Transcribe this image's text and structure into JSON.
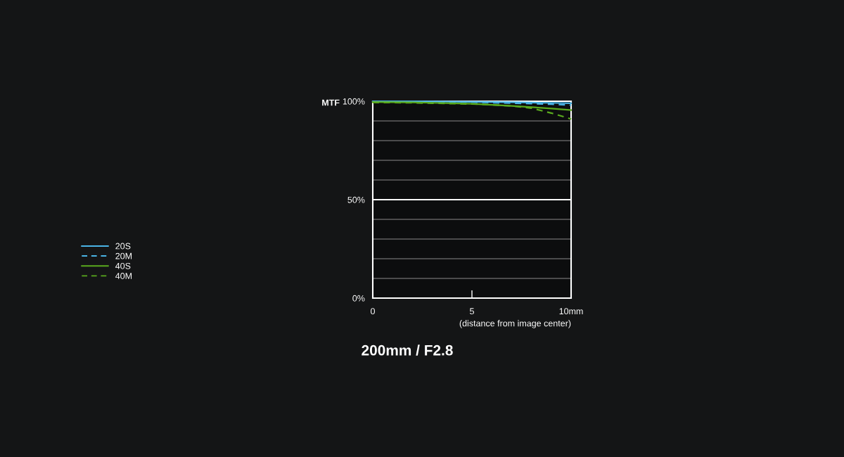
{
  "chart_data": {
    "type": "line",
    "title": "200mm / F2.8",
    "xlabel": "(distance from image center)",
    "ylabel": "MTF",
    "x": [
      0,
      1,
      2,
      3,
      4,
      5,
      6,
      7,
      8,
      9,
      10
    ],
    "series": [
      {
        "name": "20S",
        "color": "#4ab4e6",
        "line_style": "solid",
        "values": [
          100,
          100,
          100,
          99.9,
          99.8,
          99.7,
          99.6,
          99.5,
          99.3,
          99.2,
          99.0
        ]
      },
      {
        "name": "20M",
        "color": "#4ab4e6",
        "line_style": "dashed",
        "values": [
          99.8,
          99.8,
          99.8,
          99.7,
          99.6,
          99.5,
          99.3,
          99.0,
          98.8,
          98.5,
          98.0
        ]
      },
      {
        "name": "40S",
        "color": "#5aaa1e",
        "line_style": "solid",
        "values": [
          99.6,
          99.5,
          99.4,
          99.2,
          99.0,
          98.7,
          98.2,
          97.6,
          97.0,
          96.3,
          95.5
        ]
      },
      {
        "name": "40M",
        "color": "#5aaa1e",
        "line_style": "dashed",
        "values": [
          99.4,
          99.3,
          99.2,
          99.0,
          98.8,
          98.6,
          98.2,
          97.6,
          96.5,
          94.0,
          91.0
        ]
      }
    ],
    "xlim": [
      0,
      10
    ],
    "xticks": [
      0,
      5,
      {
        "value": 10,
        "label": "10mm"
      }
    ],
    "ylim": [
      0,
      100
    ],
    "yticks": [
      {
        "value": 0,
        "label": "0%"
      },
      {
        "value": 10,
        "label": null
      },
      {
        "value": 20,
        "label": null
      },
      {
        "value": 30,
        "label": null
      },
      {
        "value": 40,
        "label": null
      },
      {
        "value": 50,
        "label": "50%"
      },
      {
        "value": 60,
        "label": null
      },
      {
        "value": 70,
        "label": null
      },
      {
        "value": 80,
        "label": null
      },
      {
        "value": 90,
        "label": null
      },
      {
        "value": 100,
        "label": "100%"
      }
    ],
    "ref_lines": [
      {
        "axis": "y",
        "value": 50,
        "color": "#ffffff"
      }
    ],
    "grid": "y",
    "legend": "left",
    "marker": "none"
  }
}
